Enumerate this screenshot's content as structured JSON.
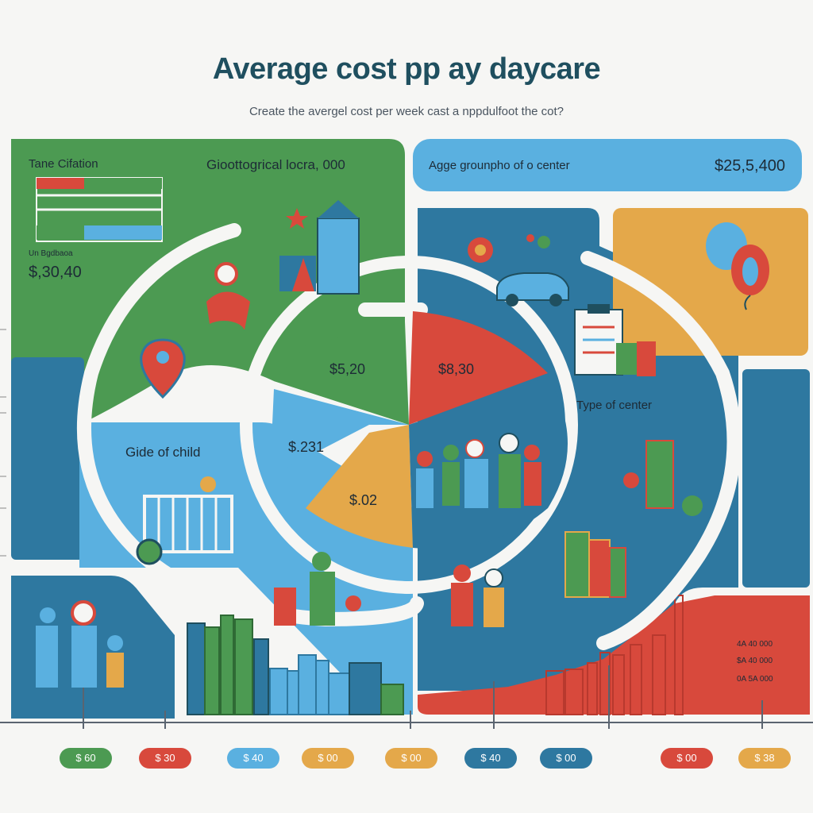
{
  "title": "Average cost pp ay daycare",
  "subtitle": "Create the avergel cost per week cast a nppdulfoot the cot?",
  "colors": {
    "green": "#4c9a52",
    "blue": "#2e78a0",
    "light_blue": "#5ab0e0",
    "red": "#d8493c",
    "orange": "#e4a84a",
    "background": "#f6f6f4"
  },
  "panels": {
    "legend_title": "Tane Cifation",
    "legend_sub": "Un Bgdbaoa",
    "legend_value": "$,30,40",
    "geo_label": "Gioottogrical locra, 000",
    "age_label": "Agge grounpho of o center",
    "age_value": "$25,5,400",
    "grade_label": "Gide of child",
    "type_label": "Type of center",
    "icons": [
      "location-pin-icon",
      "balloon-icon",
      "house-icon",
      "gear-icon",
      "car-icon",
      "clipboard-icon",
      "family-icon",
      "crib-icon",
      "books-icon"
    ]
  },
  "chart_data": [
    {
      "type": "pie",
      "labels": [
        "$5,20",
        "$8,30",
        "$.231",
        "$.02"
      ],
      "colors": [
        "#4c9a52",
        "#d8493c",
        "#5ab0e0",
        "#e4a84a"
      ]
    },
    {
      "type": "bar",
      "series_color": "#d8493c",
      "data_labels": [
        "4A 40 000",
        "$A 40 000",
        "0A 5A 000"
      ],
      "x_pills": [
        {
          "label": "$ 60",
          "color": "#4c9a52"
        },
        {
          "label": "$ 30",
          "color": "#d8493c"
        },
        {
          "label": "$ 40",
          "color": "#5ab0e0"
        },
        {
          "label": "$ 00",
          "color": "#e4a84a"
        },
        {
          "label": "$ 00",
          "color": "#e4a84a"
        },
        {
          "label": "$ 40",
          "color": "#2e78a0"
        },
        {
          "label": "$ 00",
          "color": "#2e78a0"
        },
        {
          "label": "$ 00",
          "color": "#d8493c"
        },
        {
          "label": "$ 38",
          "color": "#e4a84a"
        }
      ]
    }
  ]
}
